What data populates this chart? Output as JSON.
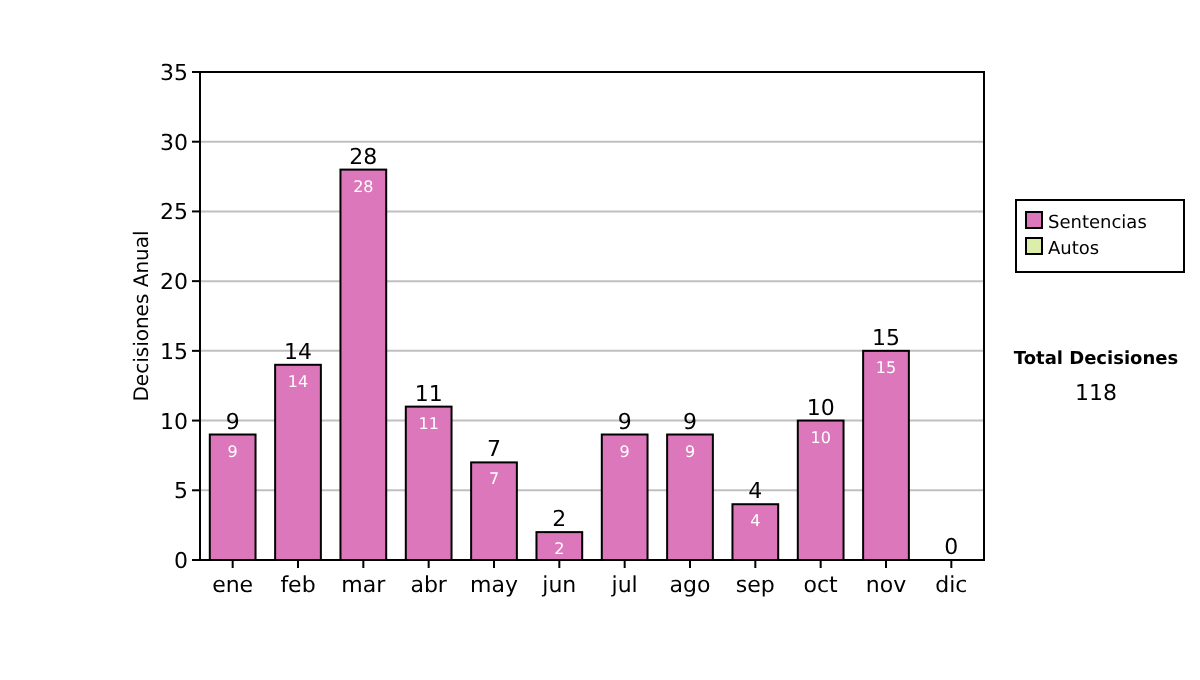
{
  "chart_data": {
    "type": "bar",
    "ylabel": "Decisiones Anual",
    "categories": [
      "ene",
      "feb",
      "mar",
      "abr",
      "may",
      "jun",
      "jul",
      "ago",
      "sep",
      "oct",
      "nov",
      "dic"
    ],
    "series": [
      {
        "name": "Sentencias",
        "color": "#dd77bb",
        "values": [
          9,
          14,
          28,
          11,
          7,
          2,
          9,
          9,
          4,
          10,
          15,
          0
        ],
        "value_labels": [
          "9",
          "14",
          "28",
          "11",
          "7",
          "2",
          "9",
          "9",
          "4",
          "10",
          "15",
          null
        ]
      },
      {
        "name": "Autos",
        "color": "#ddeeaa",
        "values": [
          0,
          0,
          0,
          0,
          0,
          0,
          0,
          0,
          0,
          0,
          0,
          0
        ]
      }
    ],
    "totals": [
      "9",
      "14",
      "28",
      "11",
      "7",
      "2",
      "9",
      "9",
      "4",
      "10",
      "15",
      "0"
    ],
    "ylim": [
      0,
      35
    ],
    "yticks": [
      0,
      5,
      10,
      15,
      20,
      25,
      30,
      35
    ],
    "grid": "y",
    "legend": "right",
    "annotations": [
      "Total Decisiones",
      "118"
    ]
  }
}
